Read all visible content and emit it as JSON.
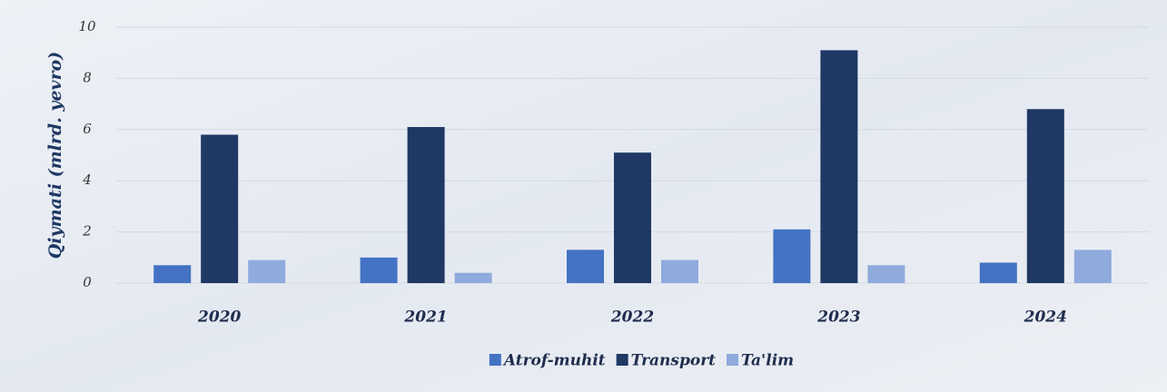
{
  "chart_data": {
    "type": "bar",
    "y_label": "Qiymati (mlrd. yevro)",
    "categories": [
      "2020",
      "2021",
      "2022",
      "2023",
      "2024"
    ],
    "series": [
      {
        "name": "Atrof-muhit",
        "color": "#4472c4",
        "values": [
          0.7,
          1.0,
          1.3,
          2.1,
          0.8
        ]
      },
      {
        "name": "Transport",
        "color": "#1f3864",
        "values": [
          5.8,
          6.1,
          5.1,
          9.1,
          6.8
        ]
      },
      {
        "name": "Ta'lim",
        "color": "#8faadc",
        "values": [
          0.9,
          0.4,
          0.9,
          0.7,
          1.3
        ]
      }
    ],
    "ylim": [
      0,
      10
    ],
    "yticks": [
      0,
      2,
      4,
      6,
      8,
      10
    ],
    "grid": true,
    "legend": "bottom"
  }
}
